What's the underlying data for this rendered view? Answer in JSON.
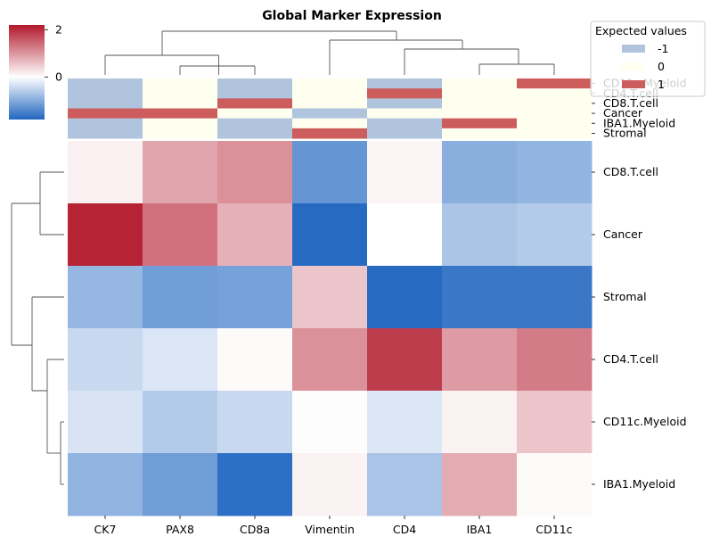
{
  "chart_data": {
    "type": "heatmap",
    "title": "Global Marker Expression",
    "columns": [
      "CK7",
      "PAX8",
      "CD8a",
      "Vimentin",
      "CD4",
      "IBA1",
      "CD11c"
    ],
    "rows": [
      "CD8.T.cell",
      "Cancer",
      "Stromal",
      "CD4.T.cell",
      "CD11c.Myeloid",
      "IBA1.Myeloid"
    ],
    "values": [
      [
        0.15,
        0.85,
        1.05,
        -1.25,
        0.1,
        -0.95,
        -0.88
      ],
      [
        2.1,
        1.35,
        0.75,
        -1.75,
        0.0,
        -0.68,
        -0.62
      ],
      [
        -0.85,
        -1.15,
        -1.1,
        0.55,
        -1.75,
        -1.6,
        -1.6
      ],
      [
        -0.45,
        -0.3,
        0.05,
        1.05,
        1.85,
        0.95,
        1.25
      ],
      [
        -0.32,
        -0.62,
        -0.45,
        0.02,
        -0.28,
        0.12,
        0.55
      ],
      [
        -0.9,
        -1.15,
        -1.7,
        0.12,
        -0.7,
        0.8,
        0.05
      ]
    ],
    "colorbar": {
      "min": -1.8,
      "max": 2.2,
      "ticks": [
        2,
        0
      ],
      "colors": {
        "low": "#2166c0",
        "mid": "#ffffff",
        "high": "#b2182b"
      }
    },
    "annotation": {
      "rows": [
        "CD11c.Myeloid",
        "CD4.T.cell",
        "CD8.T.cell",
        "Cancer",
        "IBA1.Myeloid",
        "Stromal"
      ],
      "values": [
        [
          -1,
          0,
          -1,
          0,
          -1,
          0,
          1
        ],
        [
          -1,
          0,
          -1,
          0,
          1,
          0,
          0
        ],
        [
          -1,
          0,
          1,
          0,
          -1,
          0,
          0
        ],
        [
          1,
          1,
          0,
          -1,
          0,
          0,
          0
        ],
        [
          -1,
          0,
          -1,
          0,
          -1,
          1,
          0
        ],
        [
          -1,
          0,
          -1,
          1,
          -1,
          0,
          0
        ]
      ],
      "colors": {
        "-1": "#b0c4de",
        "0": "#fffff0",
        "1": "#cd5c5c"
      }
    },
    "legend": {
      "title": "Expected values",
      "position": "top-right",
      "entries": [
        {
          "label": "-1",
          "color": "#b0c4de"
        },
        {
          "label": "0",
          "color": "#fffff0"
        },
        {
          "label": "1",
          "color": "#cd5c5c"
        }
      ]
    }
  }
}
